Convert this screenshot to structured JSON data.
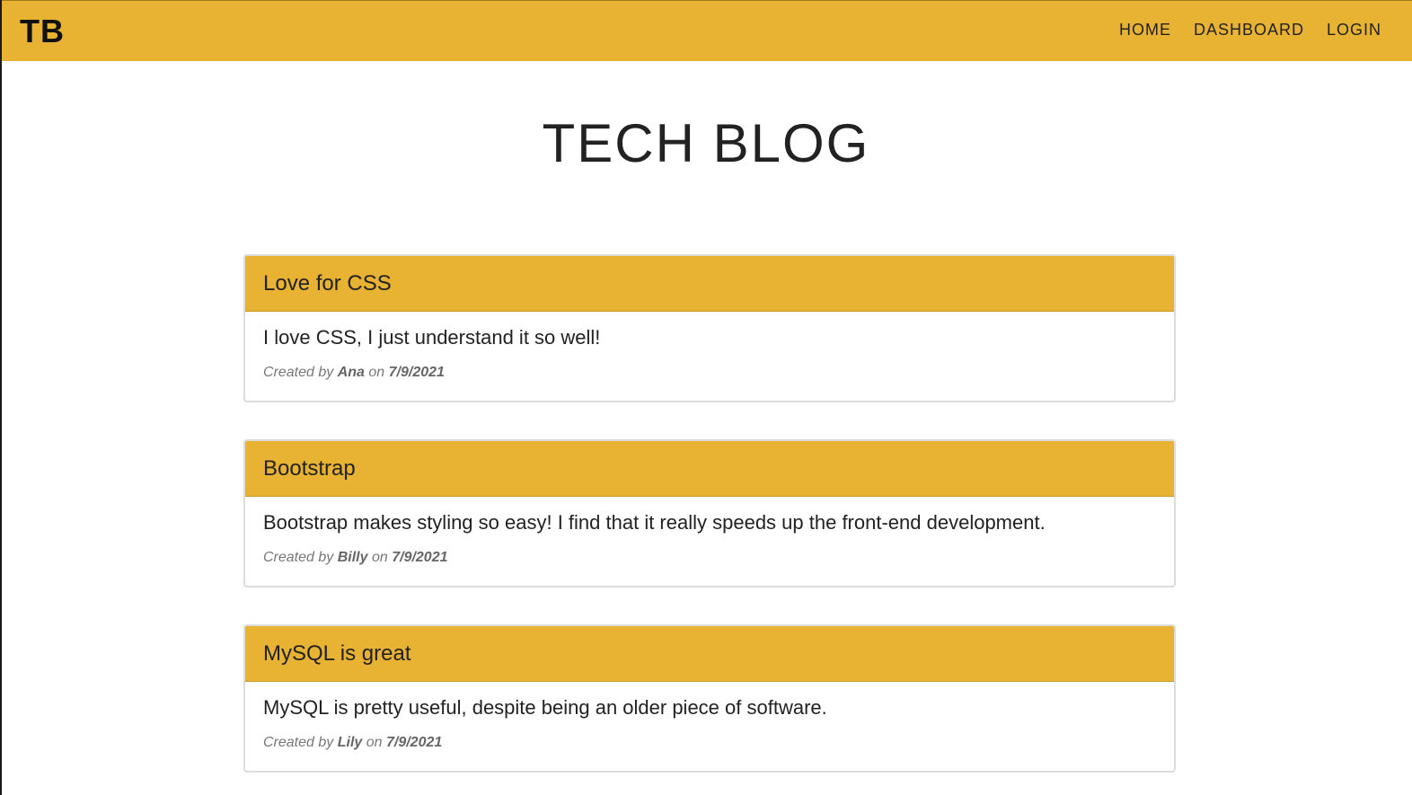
{
  "navbar": {
    "brand": "TB",
    "links": [
      {
        "label": "HOME"
      },
      {
        "label": "DASHBOARD"
      },
      {
        "label": "LOGIN"
      }
    ]
  },
  "page": {
    "title": "TECH BLOG"
  },
  "posts": [
    {
      "title": "Love for CSS",
      "content": "I love CSS, I just understand it so well!",
      "created_by_label": "Created by",
      "author": "Ana",
      "on_label": "on",
      "date": "7/9/2021"
    },
    {
      "title": "Bootstrap",
      "content": "Bootstrap makes styling so easy! I find that it really speeds up the front-end development.",
      "created_by_label": "Created by",
      "author": "Billy",
      "on_label": "on",
      "date": "7/9/2021"
    },
    {
      "title": "MySQL is great",
      "content": "MySQL is pretty useful, despite being an older piece of software.",
      "created_by_label": "Created by",
      "author": "Lily",
      "on_label": "on",
      "date": "7/9/2021"
    }
  ],
  "colors": {
    "accent": "#e8b232",
    "text": "#222222",
    "meta": "#777777"
  }
}
